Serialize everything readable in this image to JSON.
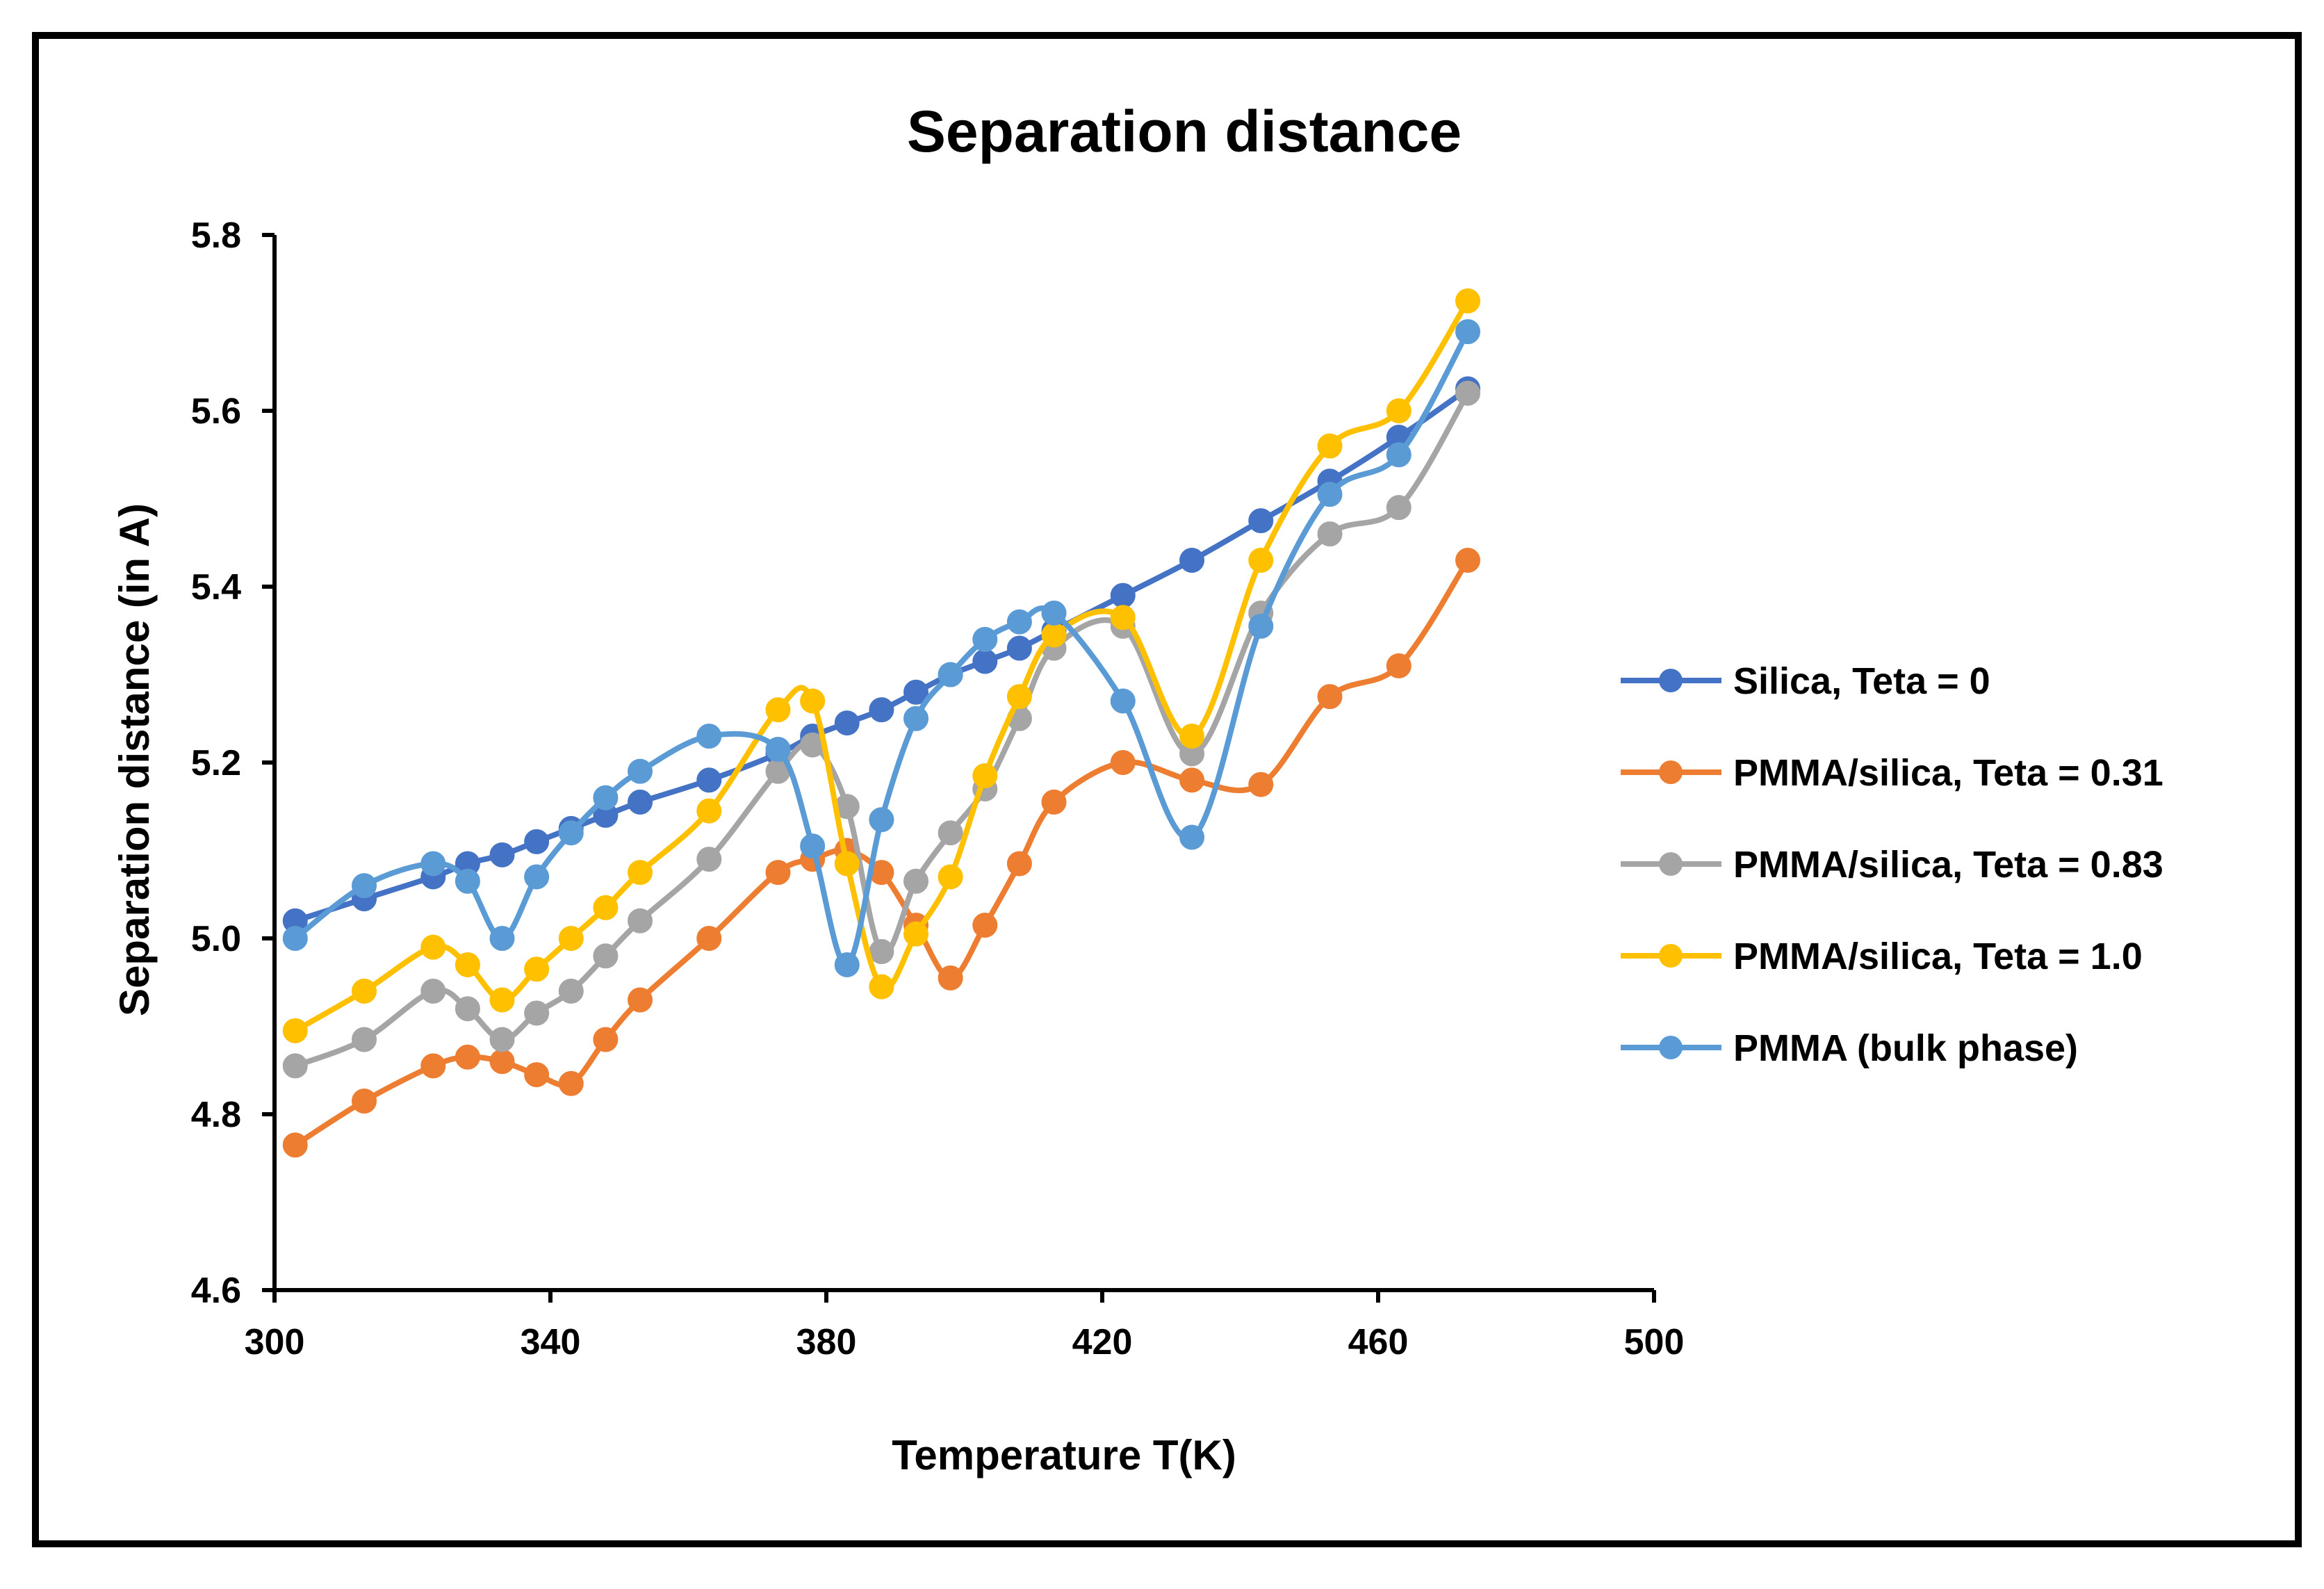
{
  "chart_data": {
    "type": "line",
    "title": "Separation distance",
    "xlabel": "Temperature T(K)",
    "ylabel": "Separation distance (in A)",
    "xlim": [
      300,
      500
    ],
    "ylim": [
      4.6,
      5.8
    ],
    "xticks": [
      300,
      340,
      380,
      420,
      460,
      500
    ],
    "yticks": [
      4.6,
      4.8,
      5.0,
      5.2,
      5.4,
      5.6,
      5.8
    ],
    "xtick_labels": [
      "300",
      "340",
      "380",
      "420",
      "460",
      "500"
    ],
    "ytick_labels": [
      "4.6",
      "4.8",
      "5.0",
      "5.2",
      "5.4",
      "5.6",
      "5.8"
    ],
    "grid": false,
    "smooth": true,
    "marker": "circle",
    "legend_position": "right",
    "series": [
      {
        "name": "Silica, Teta = 0",
        "color": "#4472c4",
        "x": [
          303,
          313,
          323,
          328,
          333,
          338,
          343,
          348,
          353,
          363,
          373,
          378,
          383,
          388,
          393,
          398,
          403,
          408,
          413,
          423,
          433,
          443,
          453,
          463,
          473
        ],
        "y": [
          5.02,
          5.045,
          5.07,
          5.085,
          5.095,
          5.11,
          5.125,
          5.14,
          5.155,
          5.18,
          5.21,
          5.23,
          5.245,
          5.26,
          5.28,
          5.3,
          5.315,
          5.33,
          5.35,
          5.39,
          5.43,
          5.475,
          5.52,
          5.57,
          5.625
        ]
      },
      {
        "name": "PMMA/silica, Teta = 0.31",
        "color": "#ed7d31",
        "x": [
          303,
          313,
          323,
          328,
          333,
          338,
          343,
          348,
          353,
          363,
          373,
          378,
          383,
          388,
          393,
          398,
          403,
          408,
          413,
          423,
          433,
          443,
          453,
          463,
          473
        ],
        "y": [
          4.765,
          4.815,
          4.855,
          4.865,
          4.86,
          4.845,
          4.835,
          4.885,
          4.93,
          5.0,
          5.075,
          5.09,
          5.1,
          5.075,
          5.015,
          4.955,
          5.015,
          5.085,
          5.155,
          5.2,
          5.18,
          5.175,
          5.275,
          5.31,
          5.43
        ]
      },
      {
        "name": "PMMA/silica, Teta = 0.83",
        "color": "#a5a5a5",
        "x": [
          303,
          313,
          323,
          328,
          333,
          338,
          343,
          348,
          353,
          363,
          373,
          378,
          383,
          388,
          393,
          398,
          403,
          408,
          413,
          423,
          433,
          443,
          453,
          463,
          473
        ],
        "y": [
          4.855,
          4.885,
          4.94,
          4.92,
          4.885,
          4.915,
          4.94,
          4.98,
          5.02,
          5.09,
          5.19,
          5.22,
          5.15,
          4.985,
          5.065,
          5.12,
          5.17,
          5.25,
          5.33,
          5.355,
          5.21,
          5.37,
          5.46,
          5.49,
          5.62
        ]
      },
      {
        "name": "PMMA/silica, Teta = 1.0",
        "color": "#ffc000",
        "x": [
          303,
          313,
          323,
          328,
          333,
          338,
          343,
          348,
          353,
          363,
          373,
          378,
          383,
          388,
          393,
          398,
          403,
          408,
          413,
          423,
          433,
          443,
          453,
          463,
          473
        ],
        "y": [
          4.895,
          4.94,
          4.99,
          4.97,
          4.93,
          4.965,
          5.0,
          5.035,
          5.075,
          5.145,
          5.26,
          5.27,
          5.085,
          4.945,
          5.005,
          5.07,
          5.185,
          5.275,
          5.345,
          5.365,
          5.23,
          5.43,
          5.56,
          5.6,
          5.725
        ]
      },
      {
        "name": "PMMA (bulk phase)",
        "color": "#5b9bd5",
        "x": [
          303,
          313,
          323,
          328,
          333,
          338,
          343,
          348,
          353,
          363,
          373,
          378,
          383,
          388,
          393,
          398,
          403,
          408,
          413,
          423,
          433,
          443,
          453,
          463,
          473
        ],
        "y": [
          5.0,
          5.06,
          5.085,
          5.065,
          5.0,
          5.07,
          5.12,
          5.16,
          5.19,
          5.23,
          5.215,
          5.105,
          4.97,
          5.135,
          5.25,
          5.3,
          5.34,
          5.36,
          5.37,
          5.27,
          5.115,
          5.355,
          5.505,
          5.55,
          5.69
        ]
      }
    ]
  }
}
